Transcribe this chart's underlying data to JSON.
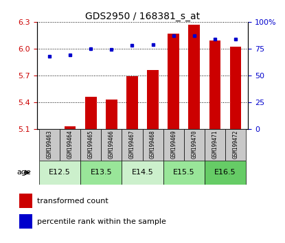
{
  "title": "GDS2950 / 168381_s_at",
  "samples": [
    "GSM199463",
    "GSM199464",
    "GSM199465",
    "GSM199466",
    "GSM199467",
    "GSM199468",
    "GSM199469",
    "GSM199470",
    "GSM199471",
    "GSM199472"
  ],
  "transformed_count": [
    5.1,
    5.13,
    5.46,
    5.43,
    5.69,
    5.76,
    6.17,
    6.27,
    6.09,
    6.02
  ],
  "percentile_rank": [
    68,
    69,
    75,
    74,
    78,
    79,
    87,
    87,
    84,
    84
  ],
  "age_groups": [
    {
      "label": "E12.5",
      "start": 0,
      "end": 2,
      "color": "#ccf0cc"
    },
    {
      "label": "E13.5",
      "start": 2,
      "end": 4,
      "color": "#99e699"
    },
    {
      "label": "E14.5",
      "start": 4,
      "end": 6,
      "color": "#ccf0cc"
    },
    {
      "label": "E15.5",
      "start": 6,
      "end": 8,
      "color": "#99e699"
    },
    {
      "label": "E16.5",
      "start": 8,
      "end": 10,
      "color": "#66cc66"
    }
  ],
  "ylim_left": [
    5.1,
    6.3
  ],
  "ylim_right": [
    0,
    100
  ],
  "yticks_left": [
    5.1,
    5.4,
    5.7,
    6.0,
    6.3
  ],
  "yticks_right": [
    0,
    25,
    50,
    75,
    100
  ],
  "bar_color": "#cc0000",
  "dot_color": "#0000cc",
  "bar_bottom": 5.1,
  "sample_strip_color": "#c8c8c8",
  "legend_items": [
    {
      "label": "transformed count",
      "color": "#cc0000"
    },
    {
      "label": "percentile rank within the sample",
      "color": "#0000cc"
    }
  ]
}
